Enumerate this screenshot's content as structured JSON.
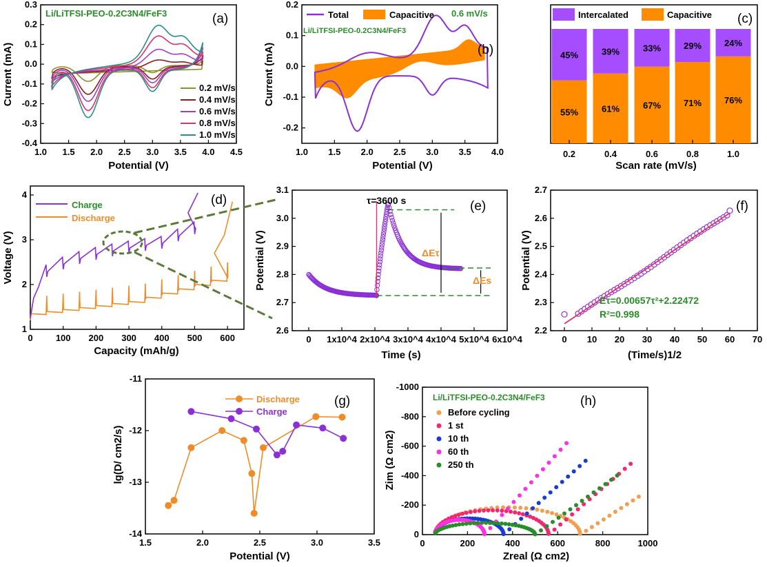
{
  "chart_data": [
    {
      "panel": "(a)",
      "type": "line",
      "title": "Li/LiTFSI-PEO-0.2C3N4/FeF3",
      "xlabel": "Potential (V)",
      "ylabel": "Current (mA)",
      "xlim": [
        1.0,
        4.5
      ],
      "ylim": [
        -0.4,
        0.3
      ],
      "xticks": [
        "1.0",
        "1.5",
        "2.0",
        "2.5",
        "3.0",
        "3.5",
        "4.0",
        "4.5"
      ],
      "yticks": [
        "-0.4",
        "-0.3",
        "-0.2",
        "-0.1",
        "0.0",
        "0.1",
        "0.2",
        "0.3"
      ],
      "legend": "bottom-right",
      "series": [
        {
          "name": "0.2 mV/s",
          "color": "#8f8f2a",
          "ox_peak": [
            3.1,
            0.05
          ],
          "red_peak": [
            1.85,
            -0.11
          ],
          "ox_end": 0.02,
          "red_start": -0.05
        },
        {
          "name": "0.4 mV/s",
          "color": "#8b1a1a",
          "ox_peak": [
            3.1,
            0.09
          ],
          "red_peak": [
            1.85,
            -0.17
          ],
          "ox_end": 0.05,
          "red_start": -0.08
        },
        {
          "name": "0.6 mV/s",
          "color": "#a23bd1",
          "ox_peak": [
            3.1,
            0.13
          ],
          "red_peak": [
            1.85,
            -0.2
          ],
          "ox_end": 0.08,
          "red_start": -0.1
        },
        {
          "name": "0.8 mV/s",
          "color": "#e0306a",
          "ox_peak": [
            3.1,
            0.18
          ],
          "red_peak": [
            1.85,
            -0.24
          ],
          "ox_end": 0.11,
          "red_start": -0.12
        },
        {
          "name": "1.0 mV/s",
          "color": "#2a8c8c",
          "ox_peak": [
            3.1,
            0.22
          ],
          "red_peak": [
            1.85,
            -0.27
          ],
          "ox_end": 0.14,
          "red_start": -0.14
        }
      ]
    },
    {
      "panel": "(b)",
      "type": "area",
      "title": "Li/LiTFSI-PEO-0.2C3N4/FeF3",
      "annotation": "0.6 mV/s",
      "xlabel": "Potential (V)",
      "ylabel": "Current (mA)",
      "xlim": [
        1.0,
        4.0
      ],
      "ylim": [
        -0.25,
        0.2
      ],
      "xticks": [
        "1.0",
        "1.5",
        "2.0",
        "2.5",
        "3.0",
        "3.5",
        "4.0"
      ],
      "yticks": [
        "-0.2",
        "-0.1",
        "0.0",
        "0.1",
        "0.2"
      ],
      "legend": "top",
      "series": [
        {
          "name": "Total",
          "color": "#8b2fd6"
        },
        {
          "name": "Capacitive",
          "color": "#ff8c00"
        }
      ]
    },
    {
      "panel": "(c)",
      "type": "bar",
      "xlabel": "Scan rate (mV/s)",
      "categories": [
        "0.2",
        "0.4",
        "0.6",
        "0.8",
        "1.0"
      ],
      "legend": "top",
      "series": [
        {
          "name": "Intercalated",
          "color": "#a64dff",
          "values": [
            45,
            39,
            33,
            29,
            24
          ],
          "labels": [
            "45%",
            "39%",
            "33%",
            "29%",
            "24%"
          ]
        },
        {
          "name": "Capacitive",
          "color": "#ff8c00",
          "values": [
            55,
            61,
            67,
            71,
            76
          ],
          "labels": [
            "55%",
            "61%",
            "67%",
            "71%",
            "76%"
          ]
        }
      ]
    },
    {
      "panel": "(d)",
      "type": "line",
      "xlabel": "Capacity (mAh/g)",
      "ylabel": "Voltage (V)",
      "xlim": [
        0,
        650
      ],
      "ylim": [
        1.0,
        4.2
      ],
      "xticks": [
        "0",
        "100",
        "200",
        "300",
        "400",
        "500",
        "600"
      ],
      "yticks": [
        "1",
        "2",
        "3",
        "4"
      ],
      "legend": "top-left",
      "series": [
        {
          "name": "Charge",
          "color": "#8b2fd6"
        },
        {
          "name": "Discharge",
          "color": "#f08c28"
        }
      ]
    },
    {
      "panel": "(e)",
      "type": "scatter",
      "xlabel": "Time (s)",
      "ylabel": "Potential (V)",
      "xlim": [
        -5000,
        60000
      ],
      "ylim": [
        2.6,
        3.1
      ],
      "xticks": [
        "0",
        "1x10^4",
        "2x10^4",
        "3x10^4",
        "4x10^4",
        "5x10^4",
        "6x10^4"
      ],
      "yticks": [
        "2.6",
        "2.7",
        "2.8",
        "2.9",
        "3.0",
        "3.1"
      ],
      "annotations": [
        "τ=3600 s",
        "ΔEτ",
        "ΔEs"
      ],
      "series": [
        {
          "name": "",
          "color": "#8b2fd6"
        }
      ]
    },
    {
      "panel": "(f)",
      "type": "scatter",
      "xlabel": "(Time/s)1/2",
      "ylabel": "Potential (V)",
      "xlim": [
        -5,
        70
      ],
      "ylim": [
        2.2,
        2.7
      ],
      "xticks": [
        "0",
        "10",
        "20",
        "30",
        "40",
        "50",
        "60",
        "70"
      ],
      "yticks": [
        "2.2",
        "2.3",
        "2.4",
        "2.5",
        "2.6",
        "2.7"
      ],
      "fit": {
        "text": "Eτ=0.00657τ²+2.22472",
        "r2": "R²=0.998",
        "slope": 0.00657,
        "intercept": 2.22472
      },
      "series": [
        {
          "name": "",
          "color": "#8b2fd6"
        }
      ]
    },
    {
      "panel": "(g)",
      "type": "line",
      "xlabel": "Potential (V)",
      "ylabel": "lg(D/ cm2/s)",
      "xlim": [
        1.5,
        3.5
      ],
      "ylim": [
        -14,
        -11
      ],
      "xticks": [
        "1.5",
        "2.0",
        "2.5",
        "3.0",
        "3.5"
      ],
      "yticks": [
        "-11",
        "-12",
        "-13",
        "-14"
      ],
      "legend": "top",
      "series": [
        {
          "name": "Discharge",
          "color": "#f08c28",
          "x": [
            1.7,
            1.75,
            1.9,
            2.17,
            2.36,
            2.43,
            2.45,
            2.53,
            2.99,
            3.22
          ],
          "y": [
            -13.45,
            -13.35,
            -12.33,
            -12.0,
            -12.19,
            -12.83,
            -13.6,
            -12.33,
            -11.73,
            -11.74
          ]
        },
        {
          "name": "Charge",
          "color": "#8b2fd6",
          "x": [
            1.9,
            2.25,
            2.47,
            2.65,
            2.7,
            2.82,
            3.05,
            3.23
          ],
          "y": [
            -11.63,
            -11.77,
            -11.97,
            -12.47,
            -12.4,
            -11.89,
            -11.95,
            -12.15
          ]
        }
      ]
    },
    {
      "panel": "(h)",
      "type": "scatter",
      "title": "Li/LiTFSI-PEO-0.2C3N4/FeF3",
      "xlabel": "Zreal (Ω cm2)",
      "ylabel": "Zim (Ω cm2)",
      "xlim": [
        0,
        1000
      ],
      "ylim": [
        0,
        -1000
      ],
      "xticks": [
        "0",
        "200",
        "400",
        "600",
        "800",
        "1000"
      ],
      "yticks": [
        "0",
        "-200",
        "-400",
        "-600",
        "-800",
        "-1000"
      ],
      "legend": "top-left",
      "series": [
        {
          "name": "Before cycling",
          "color": "#f0a050",
          "rct": 700,
          "hump": 185,
          "tail": 0.9
        },
        {
          "name": "1 st",
          "color": "#f02870",
          "rct": 560,
          "hump": 165,
          "tail": 1.2
        },
        {
          "name": "10 th",
          "color": "#1a3cd6",
          "rct": 360,
          "hump": 110,
          "tail": 1.25
        },
        {
          "name": "60 th",
          "color": "#ff30e0",
          "rct": 275,
          "hump": 100,
          "tail": 1.55
        },
        {
          "name": "250 th",
          "color": "#2a8c2a",
          "rct": 500,
          "hump": 80,
          "tail": 1.0
        }
      ]
    }
  ]
}
